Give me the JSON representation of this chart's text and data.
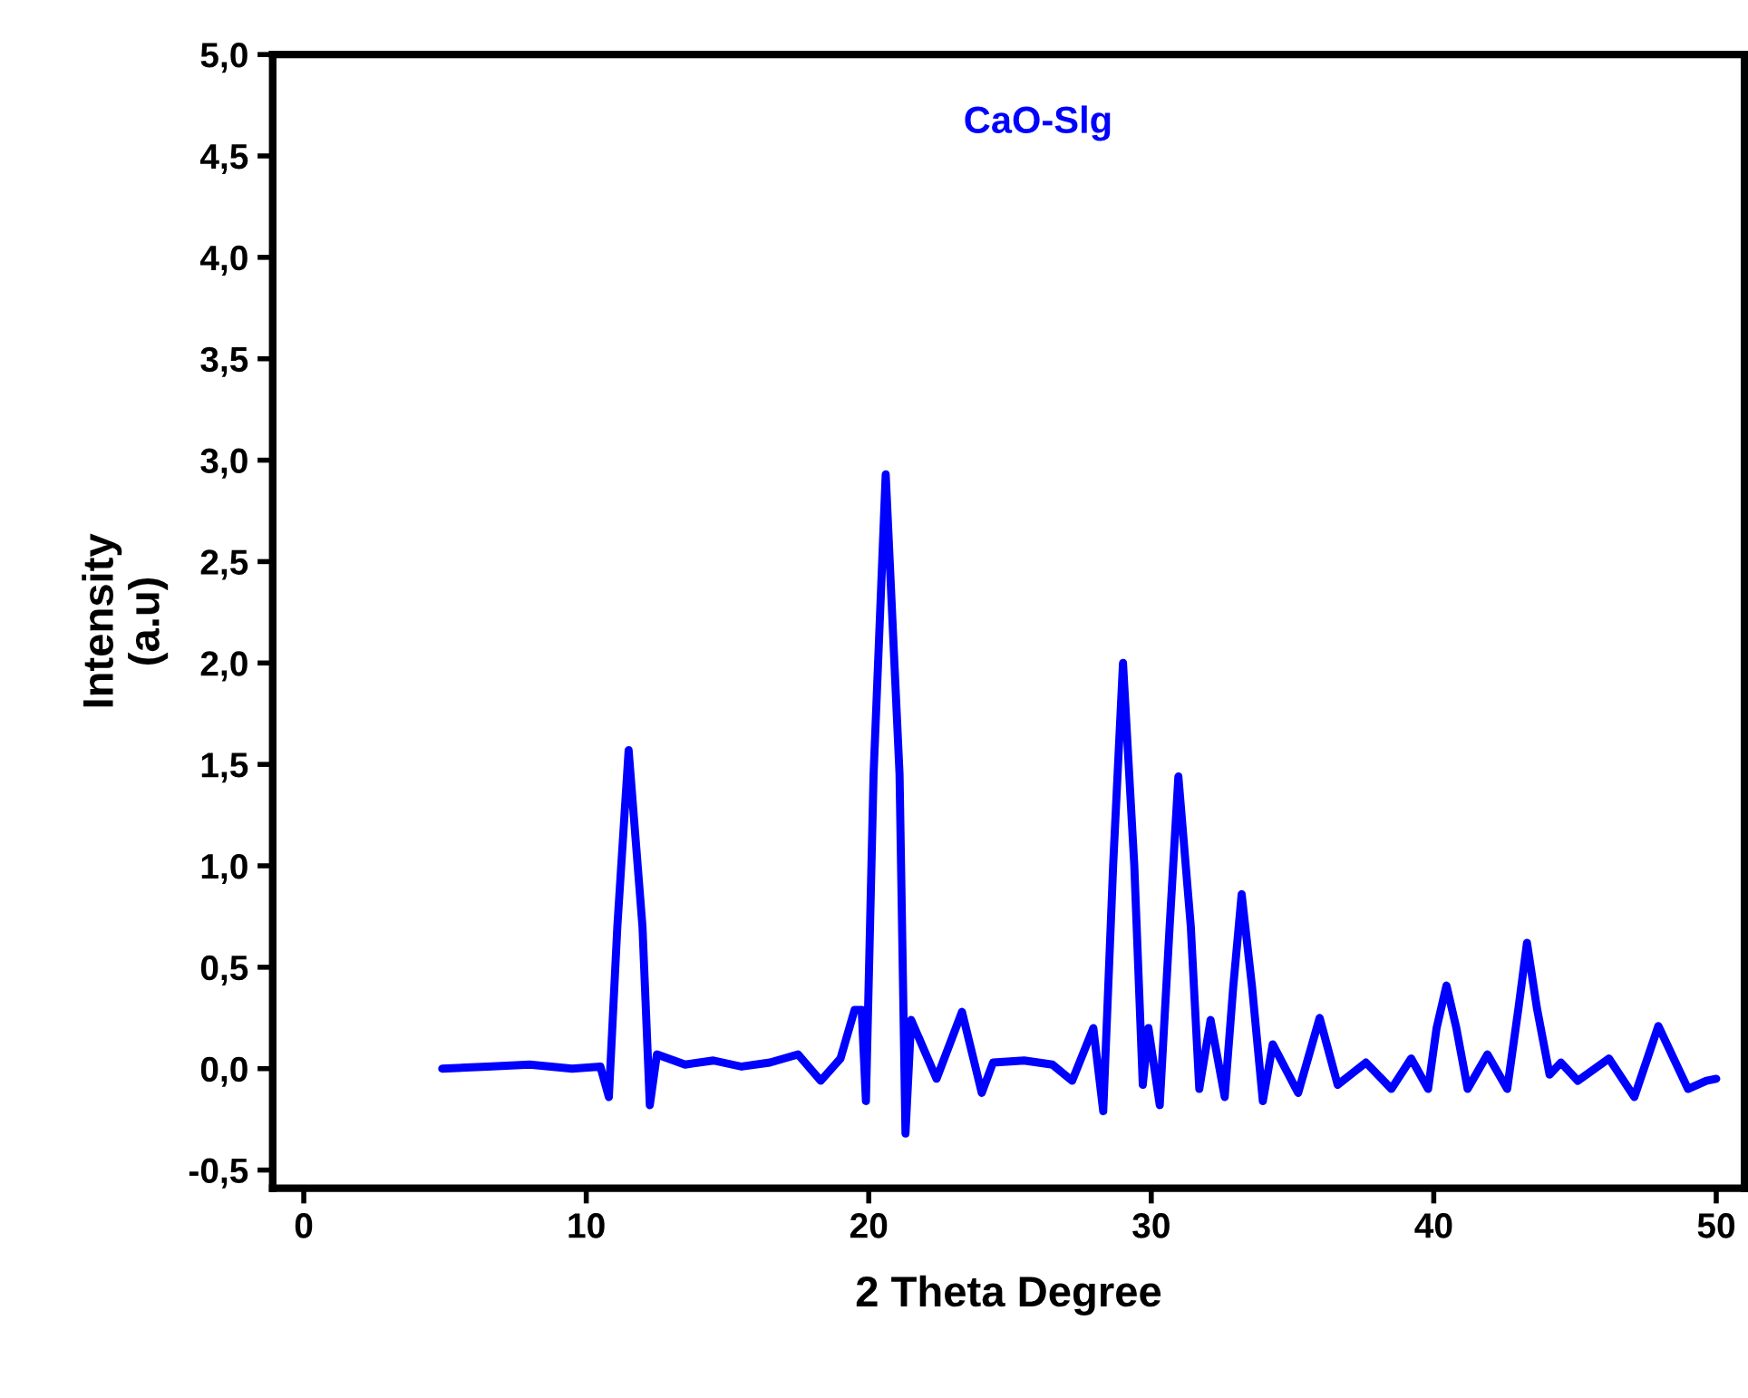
{
  "chart_data": {
    "type": "line",
    "xlabel": "2 Theta Degree",
    "ylabel": "Intensity\n(a.u)",
    "series": [
      {
        "name": "CaO-Slg",
        "color": "#0000ff",
        "x": [
          4.9,
          6.5,
          8.0,
          9.5,
          10.5,
          10.8,
          11.1,
          11.5,
          11.99,
          12.25,
          12.5,
          13.5,
          14.5,
          15.5,
          16.5,
          17.5,
          18.3,
          19.0,
          19.5,
          19.75,
          19.9,
          20.17,
          20.6,
          21.09,
          21.3,
          21.5,
          22.4,
          23.3,
          24.0,
          24.4,
          25.5,
          26.5,
          27.2,
          27.95,
          28.3,
          28.65,
          29.0,
          29.4,
          29.7,
          29.9,
          30.3,
          30.65,
          30.96,
          31.4,
          31.7,
          32.1,
          32.6,
          32.9,
          33.2,
          33.57,
          33.95,
          34.3,
          35.2,
          35.96,
          36.6,
          37.6,
          38.5,
          39.2,
          39.8,
          40.1,
          40.45,
          40.8,
          41.2,
          41.9,
          42.6,
          43.0,
          43.3,
          43.65,
          44.1,
          44.5,
          45.1,
          46.2,
          47.1,
          47.95,
          49.0,
          49.65,
          50.0
        ],
        "values": [
          0.0,
          0.01,
          0.02,
          0.0,
          0.01,
          -0.14,
          0.7,
          1.57,
          0.7,
          -0.18,
          0.07,
          0.02,
          0.04,
          0.01,
          0.03,
          0.07,
          -0.06,
          0.05,
          0.29,
          0.29,
          -0.16,
          1.45,
          2.93,
          1.45,
          -0.32,
          0.24,
          -0.05,
          0.28,
          -0.12,
          0.03,
          0.04,
          0.02,
          -0.06,
          0.2,
          -0.21,
          1.0,
          2.0,
          1.0,
          -0.08,
          0.2,
          -0.18,
          0.7,
          1.44,
          0.7,
          -0.1,
          0.24,
          -0.14,
          0.4,
          0.86,
          0.4,
          -0.16,
          0.12,
          -0.12,
          0.25,
          -0.08,
          0.03,
          -0.1,
          0.05,
          -0.1,
          0.2,
          0.41,
          0.2,
          -0.1,
          0.07,
          -0.1,
          0.3,
          0.62,
          0.3,
          -0.03,
          0.03,
          -0.06,
          0.05,
          -0.14,
          0.21,
          -0.1,
          -0.06,
          -0.05
        ]
      }
    ],
    "xlim": [
      -1.1,
      51
    ],
    "xticks": [
      0,
      10,
      20,
      30,
      40,
      50
    ],
    "ylim": [
      -0.59,
      5.0
    ],
    "yticks": [
      {
        "value": -0.5,
        "label": "-0,5"
      },
      {
        "value": 0,
        "label": "0,0"
      },
      {
        "value": 0.5,
        "label": "0,5"
      },
      {
        "value": 1.0,
        "label": "1,0"
      },
      {
        "value": 1.5,
        "label": "1,5"
      },
      {
        "value": 2.0,
        "label": "2,0"
      },
      {
        "value": 2.5,
        "label": "2,5"
      },
      {
        "value": 3.0,
        "label": "3,0"
      },
      {
        "value": 3.5,
        "label": "3,5"
      },
      {
        "value": 4.0,
        "label": "4,0"
      },
      {
        "value": 4.5,
        "label": "4,5"
      },
      {
        "value": 5.0,
        "label": "5,0"
      }
    ],
    "grid": false,
    "legend": false,
    "marker": "none",
    "line_style": "solid"
  }
}
